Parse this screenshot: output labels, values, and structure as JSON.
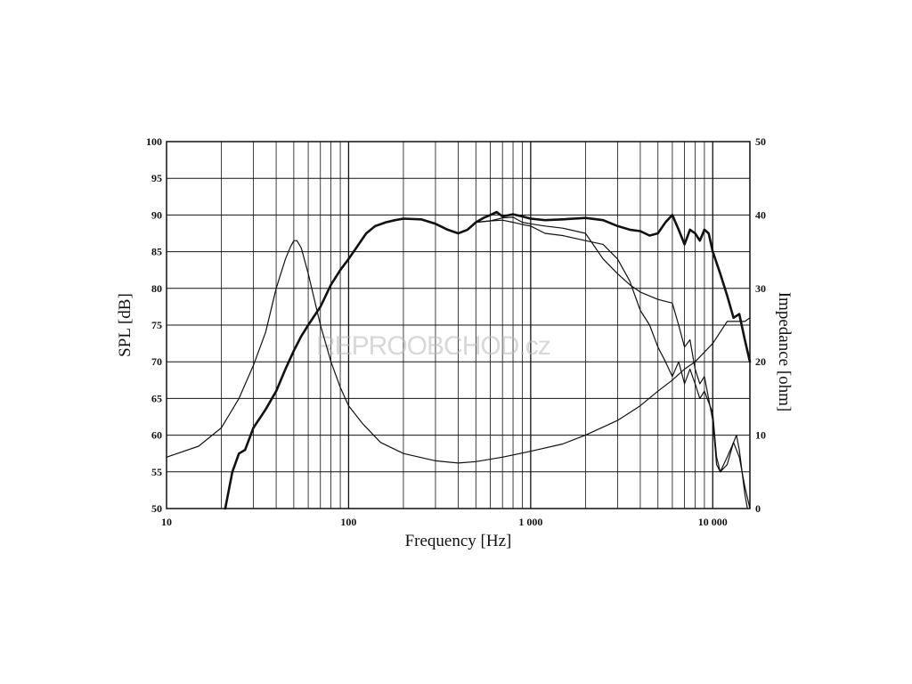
{
  "chart_data": {
    "type": "line",
    "xscale": "log",
    "xlim": [
      10,
      16000
    ],
    "ylim_left": [
      50,
      100
    ],
    "ylim_right": [
      0,
      50
    ],
    "xlabel": "Frequency [Hz]",
    "ylabel_left": "SPL [dB]",
    "ylabel_right": "Impedance [ohm]",
    "grid": true,
    "x_tick_labels": [
      {
        "v": 10,
        "label": "10"
      },
      {
        "v": 100,
        "label": "100"
      },
      {
        "v": 1000,
        "label": "1 000"
      },
      {
        "v": 10000,
        "label": "10 000"
      }
    ],
    "y_left_ticks": [
      50,
      55,
      60,
      65,
      70,
      75,
      80,
      85,
      90,
      95,
      100
    ],
    "y_right_ticks": [
      0,
      10,
      20,
      30,
      40,
      50
    ],
    "watermark": "REPROOBCHOD.cz",
    "series": [
      {
        "axis": "left",
        "stroke": 2.6,
        "points": [
          [
            21,
            50
          ],
          [
            23,
            55
          ],
          [
            25,
            57.5
          ],
          [
            27,
            58
          ],
          [
            30,
            61
          ],
          [
            35,
            63.5
          ],
          [
            40,
            66
          ],
          [
            45,
            69
          ],
          [
            50,
            71.5
          ],
          [
            55,
            73.5
          ],
          [
            60,
            75
          ],
          [
            70,
            77.5
          ],
          [
            80,
            80.5
          ],
          [
            90,
            82.5
          ],
          [
            100,
            84
          ],
          [
            110,
            85.5
          ],
          [
            125,
            87.5
          ],
          [
            140,
            88.5
          ],
          [
            160,
            89
          ],
          [
            180,
            89.3
          ],
          [
            200,
            89.5
          ],
          [
            250,
            89.4
          ],
          [
            300,
            88.8
          ],
          [
            350,
            88
          ],
          [
            400,
            87.5
          ],
          [
            450,
            88
          ],
          [
            500,
            89
          ],
          [
            550,
            89.6
          ],
          [
            600,
            90
          ],
          [
            650,
            90.4
          ],
          [
            700,
            89.8
          ],
          [
            800,
            90.1
          ],
          [
            900,
            89.8
          ],
          [
            1000,
            89.5
          ],
          [
            1200,
            89.3
          ],
          [
            1500,
            89.4
          ],
          [
            2000,
            89.6
          ],
          [
            2500,
            89.3
          ],
          [
            3000,
            88.5
          ],
          [
            3500,
            88
          ],
          [
            4000,
            87.8
          ],
          [
            4500,
            87.2
          ],
          [
            5000,
            87.5
          ],
          [
            5500,
            89
          ],
          [
            6000,
            90
          ],
          [
            6500,
            88
          ],
          [
            7000,
            86
          ],
          [
            7500,
            88
          ],
          [
            8000,
            87.5
          ],
          [
            8500,
            86.5
          ],
          [
            9000,
            88
          ],
          [
            9500,
            87.5
          ],
          [
            10000,
            85
          ],
          [
            11000,
            82
          ],
          [
            12000,
            79
          ],
          [
            13000,
            76
          ],
          [
            14000,
            76.5
          ],
          [
            15000,
            73
          ],
          [
            16000,
            70
          ]
        ]
      },
      {
        "axis": "left",
        "stroke": 1.2,
        "points": [
          [
            500,
            89
          ],
          [
            600,
            89.2
          ],
          [
            700,
            89.6
          ],
          [
            800,
            89.7
          ],
          [
            900,
            89
          ],
          [
            1000,
            88.8
          ],
          [
            1200,
            88.5
          ],
          [
            1500,
            88.2
          ],
          [
            2000,
            87.5
          ],
          [
            2500,
            84
          ],
          [
            3000,
            82
          ],
          [
            3500,
            80.5
          ],
          [
            4000,
            79.5
          ],
          [
            5000,
            78.5
          ],
          [
            6000,
            78
          ],
          [
            6500,
            75
          ],
          [
            7000,
            72
          ],
          [
            7500,
            73
          ],
          [
            8000,
            69
          ],
          [
            8500,
            67
          ],
          [
            9000,
            68
          ],
          [
            10000,
            62
          ],
          [
            10500,
            56
          ],
          [
            11000,
            55
          ],
          [
            12000,
            57
          ],
          [
            13000,
            59
          ],
          [
            13500,
            60
          ],
          [
            14000,
            58
          ],
          [
            15000,
            52
          ],
          [
            15500,
            50
          ]
        ]
      },
      {
        "axis": "left",
        "stroke": 1.2,
        "points": [
          [
            500,
            89
          ],
          [
            600,
            89.2
          ],
          [
            700,
            89.3
          ],
          [
            800,
            89
          ],
          [
            900,
            88.7
          ],
          [
            1000,
            88.5
          ],
          [
            1200,
            87.5
          ],
          [
            1500,
            87.2
          ],
          [
            2000,
            86.5
          ],
          [
            2500,
            86
          ],
          [
            3000,
            84
          ],
          [
            3500,
            81
          ],
          [
            4000,
            77
          ],
          [
            4500,
            75
          ],
          [
            5000,
            72
          ],
          [
            5500,
            70
          ],
          [
            6000,
            68
          ],
          [
            6500,
            70
          ],
          [
            7000,
            67
          ],
          [
            7500,
            69
          ],
          [
            8000,
            67
          ],
          [
            8500,
            65
          ],
          [
            9000,
            66
          ],
          [
            10000,
            63
          ],
          [
            10500,
            57
          ],
          [
            11000,
            55
          ],
          [
            12000,
            56
          ],
          [
            13000,
            59
          ],
          [
            14000,
            57
          ],
          [
            15000,
            53
          ],
          [
            16000,
            50
          ]
        ]
      },
      {
        "axis": "right",
        "stroke": 1.2,
        "points": [
          [
            10,
            7
          ],
          [
            15,
            8.5
          ],
          [
            20,
            11
          ],
          [
            25,
            15
          ],
          [
            30,
            19.5
          ],
          [
            35,
            24
          ],
          [
            40,
            30
          ],
          [
            45,
            34
          ],
          [
            48,
            35.7
          ],
          [
            50,
            36.5
          ],
          [
            52,
            36.5
          ],
          [
            55,
            35.5
          ],
          [
            60,
            32
          ],
          [
            70,
            25
          ],
          [
            80,
            20
          ],
          [
            90,
            16.5
          ],
          [
            100,
            14
          ],
          [
            120,
            11.5
          ],
          [
            150,
            9
          ],
          [
            200,
            7.5
          ],
          [
            300,
            6.5
          ],
          [
            400,
            6.2
          ],
          [
            500,
            6.4
          ],
          [
            700,
            7
          ],
          [
            1000,
            7.8
          ],
          [
            1500,
            8.8
          ],
          [
            2000,
            10
          ],
          [
            3000,
            12
          ],
          [
            4000,
            14
          ],
          [
            5000,
            16
          ],
          [
            6000,
            17.5
          ],
          [
            7000,
            19
          ],
          [
            8000,
            20
          ],
          [
            10000,
            22.5
          ],
          [
            12000,
            25.5
          ],
          [
            15000,
            25.5
          ],
          [
            16000,
            26
          ]
        ]
      }
    ]
  }
}
